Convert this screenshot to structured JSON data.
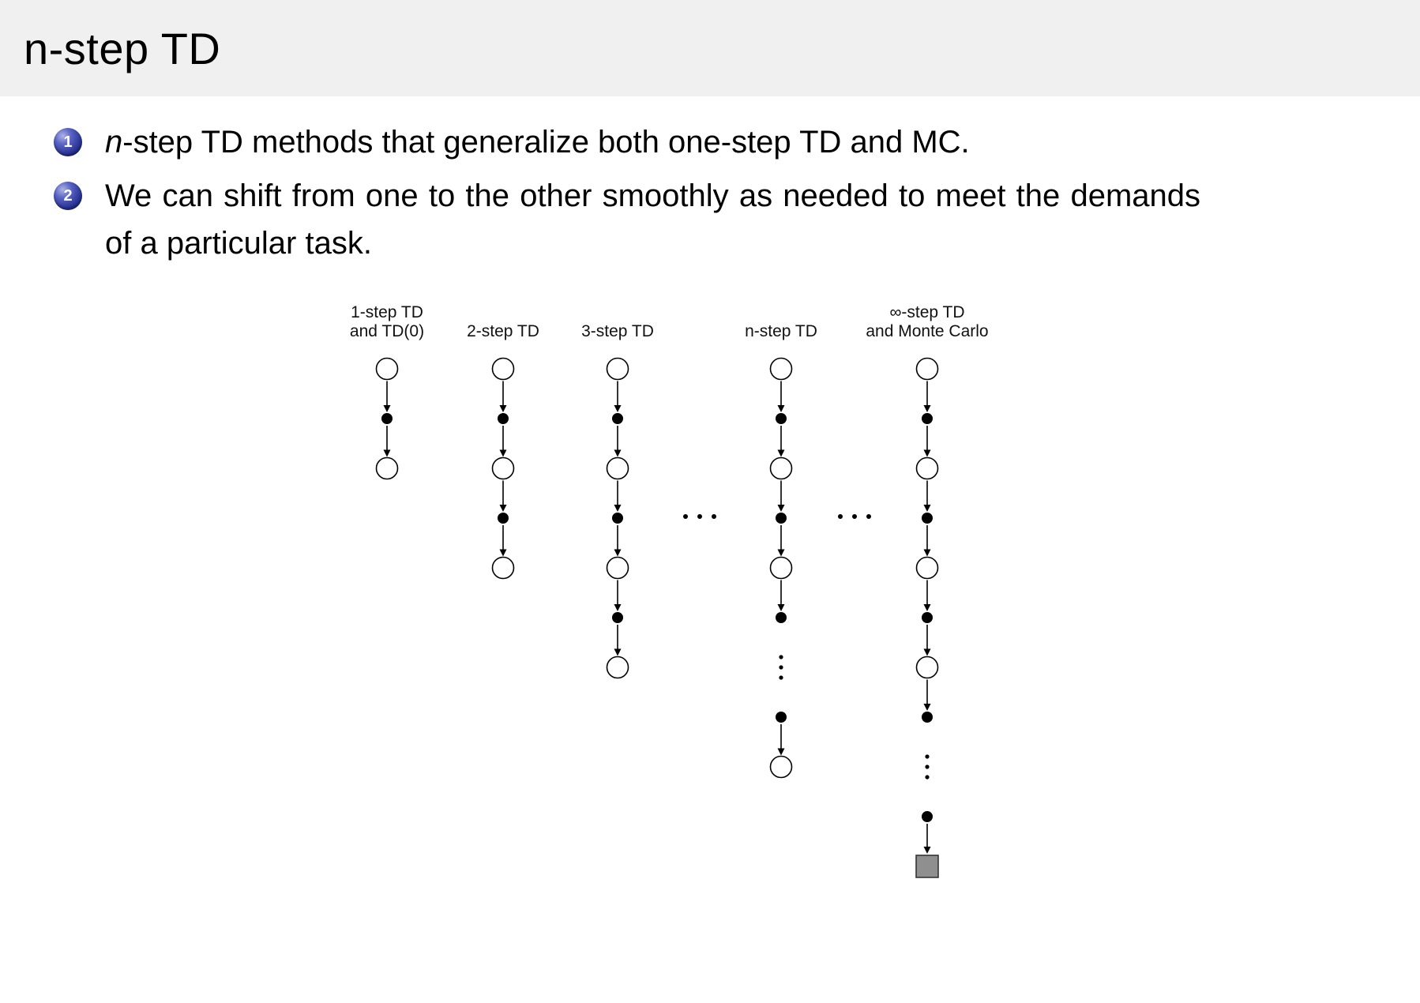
{
  "slide": {
    "title": "n-step TD"
  },
  "bullets": [
    {
      "number": "1",
      "italic_lead": "n",
      "text": "-step TD methods that generalize both one-step TD and MC."
    },
    {
      "number": "2",
      "italic_lead": "",
      "text": "We can shift from one to the other smoothly as needed to meet the demands of a particular task."
    }
  ],
  "diagram": {
    "columns": [
      {
        "label_lines": [
          "1-step TD",
          "and TD(0)"
        ],
        "nodes": [
          "open",
          "filled",
          "open"
        ]
      },
      {
        "label_lines": [
          "2-step TD"
        ],
        "nodes": [
          "open",
          "filled",
          "open",
          "filled",
          "open"
        ]
      },
      {
        "label_lines": [
          "3-step TD"
        ],
        "nodes": [
          "open",
          "filled",
          "open",
          "filled",
          "open",
          "filled",
          "open"
        ]
      },
      {
        "label_lines": [
          "n-step TD"
        ],
        "nodes": [
          "open",
          "filled",
          "open",
          "filled",
          "open",
          "filled",
          "vdots",
          "filled",
          "open"
        ]
      },
      {
        "label_lines": [
          "∞-step TD",
          "and Monte Carlo"
        ],
        "nodes": [
          "open",
          "filled",
          "open",
          "filled",
          "open",
          "filled",
          "open",
          "filled",
          "vdots",
          "filled",
          "square"
        ]
      }
    ],
    "ellipsis_between": [
      [
        2,
        3
      ],
      [
        3,
        4
      ]
    ],
    "ellipsis_row": 3
  },
  "colors": {
    "header_bg": "#f0f0f0",
    "badge_blue": "#232e8f",
    "terminal_square_fill": "#8f8f8f",
    "terminal_square_stroke": "#2b2b2b",
    "node_stroke": "#000000"
  }
}
